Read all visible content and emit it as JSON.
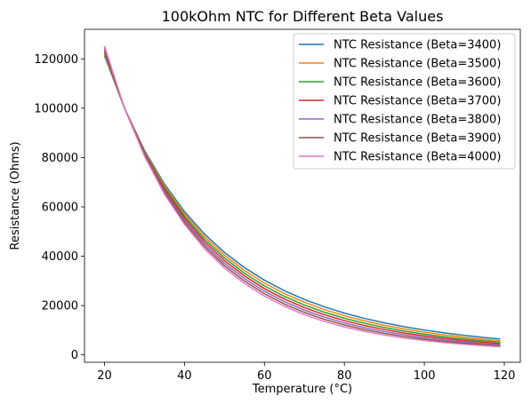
{
  "chart_data": {
    "type": "line",
    "title": "100kOhm NTC for Different Beta Values",
    "xlabel": "Temperature (°C)",
    "ylabel": "Resistance (Ohms)",
    "xlim": [
      15,
      124
    ],
    "ylim": [
      -3000,
      132000
    ],
    "xticks": [
      20,
      40,
      60,
      80,
      100,
      120
    ],
    "yticks": [
      0,
      20000,
      40000,
      60000,
      80000,
      100000,
      120000
    ],
    "grid": false,
    "legend_position": "top-right",
    "x": [
      20,
      25,
      30,
      35,
      40,
      45,
      50,
      55,
      60,
      65,
      70,
      75,
      80,
      85,
      90,
      95,
      100,
      105,
      110,
      115,
      119
    ],
    "series": [
      {
        "name": "NTC Resistance (Beta=3400)",
        "color": "#1f77b4",
        "values": [
          121230,
          100000,
          82960,
          69230,
          58090,
          49000,
          41540,
          35380,
          30280,
          26020,
          22460,
          19470,
          16940,
          14800,
          12970,
          11410,
          10070,
          8910,
          7910,
          7050,
          6430
        ]
      },
      {
        "name": "NTC Resistance (Beta=3500)",
        "color": "#ff7f0e",
        "values": [
          121880,
          100000,
          82560,
          68530,
          57200,
          47960,
          40420,
          34210,
          29090,
          24850,
          21310,
          18360,
          15870,
          13780,
          12000,
          10490,
          9200,
          8090,
          7140,
          6320,
          5750
        ]
      },
      {
        "name": "NTC Resistance (Beta=3600)",
        "color": "#2ca02c",
        "values": [
          122540,
          100000,
          82170,
          67850,
          56330,
          46950,
          39330,
          33090,
          27960,
          23720,
          20210,
          17290,
          14860,
          12820,
          11090,
          9640,
          8400,
          7340,
          6440,
          5670,
          5130
        ]
      },
      {
        "name": "NTC Resistance (Beta=3700)",
        "color": "#d62728",
        "values": [
          123210,
          100000,
          81780,
          67170,
          55470,
          45960,
          38260,
          32000,
          26860,
          22640,
          19160,
          16280,
          13890,
          11910,
          10250,
          8850,
          7670,
          6670,
          5820,
          5090,
          4580
        ]
      },
      {
        "name": "NTC Resistance (Beta=3800)",
        "color": "#9467bd",
        "values": [
          123890,
          100000,
          81390,
          66500,
          54620,
          44990,
          37220,
          30950,
          25810,
          21600,
          18150,
          15310,
          12970,
          11040,
          9440,
          8110,
          6990,
          6050,
          5250,
          4570,
          4090
        ]
      },
      {
        "name": "NTC Resistance (Beta=3900)",
        "color": "#8c564b",
        "values": [
          124570,
          100000,
          81010,
          65830,
          53780,
          44040,
          36210,
          29930,
          24810,
          20610,
          17200,
          14390,
          12110,
          10240,
          8690,
          7420,
          6360,
          5480,
          4740,
          4110,
          3660
        ]
      },
      {
        "name": "NTC Resistance (Beta=4000)",
        "color": "#e377c2",
        "values": [
          125260,
          100000,
          80620,
          65180,
          52950,
          43110,
          35220,
          28940,
          23830,
          19680,
          16290,
          13540,
          11290,
          9490,
          8000,
          6790,
          5800,
          4970,
          4280,
          3700,
          3280
        ]
      }
    ]
  }
}
